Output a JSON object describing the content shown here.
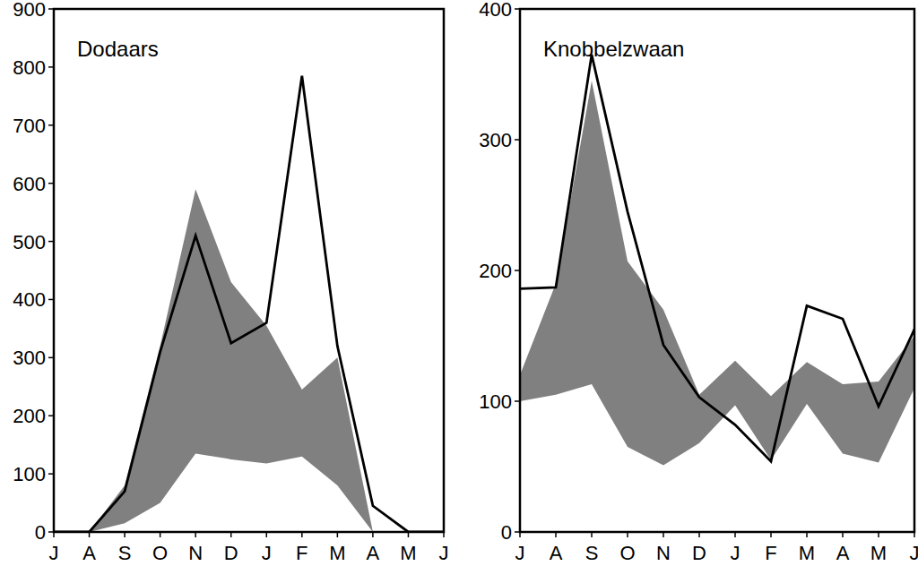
{
  "chart_data": [
    {
      "type": "line",
      "title": "Dodaars",
      "categories": [
        "J",
        "A",
        "S",
        "O",
        "N",
        "D",
        "J",
        "F",
        "M",
        "A",
        "M",
        "J"
      ],
      "ylim": [
        0,
        900
      ],
      "yticks": [
        0,
        100,
        200,
        300,
        400,
        500,
        600,
        700,
        800,
        900
      ],
      "series": [
        {
          "type": "band",
          "color": "#808080",
          "low": [
            0,
            0,
            15,
            50,
            135,
            125,
            118,
            130,
            80,
            0,
            0,
            0
          ],
          "high": [
            0,
            0,
            80,
            320,
            590,
            430,
            355,
            245,
            300,
            0,
            0,
            0
          ]
        },
        {
          "type": "line",
          "color": "#000000",
          "values": [
            0,
            0,
            70,
            310,
            510,
            325,
            360,
            785,
            320,
            45,
            0,
            0
          ]
        }
      ]
    },
    {
      "type": "line",
      "title": "Knobbelzwaan",
      "categories": [
        "J",
        "A",
        "S",
        "O",
        "N",
        "D",
        "J",
        "F",
        "M",
        "A",
        "M",
        "J"
      ],
      "ylim": [
        0,
        400
      ],
      "yticks": [
        0,
        100,
        200,
        300,
        400
      ],
      "series": [
        {
          "type": "band",
          "color": "#808080",
          "low": [
            100,
            105,
            113,
            65,
            51,
            68,
            97,
            55,
            98,
            60,
            53,
            110
          ],
          "high": [
            120,
            190,
            345,
            207,
            170,
            105,
            131,
            104,
            130,
            113,
            115,
            150
          ]
        },
        {
          "type": "line",
          "color": "#000000",
          "values": [
            186,
            187,
            365,
            245,
            143,
            103,
            82,
            54,
            173,
            163,
            96,
            155
          ]
        }
      ]
    }
  ]
}
